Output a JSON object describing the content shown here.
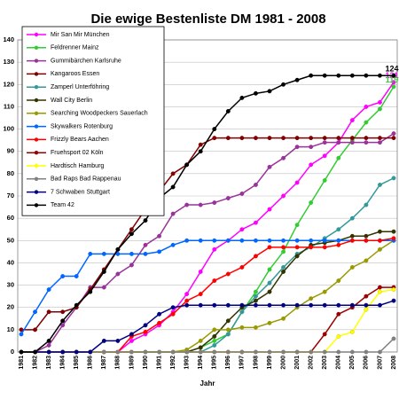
{
  "chart_data": {
    "type": "line",
    "title": "Die ewige Bestenliste DM 1981 - 2008",
    "x_label": "Jahr",
    "categories": [
      "1981",
      "1982",
      "1983",
      "1984",
      "1985",
      "1986",
      "1987",
      "1988",
      "1989",
      "1990",
      "1991",
      "1992",
      "1993",
      "1994",
      "1995",
      "1996",
      "1997",
      "1998",
      "1999",
      "2000",
      "2001",
      "2002",
      "2003",
      "2004",
      "2005",
      "2006",
      "2007",
      "2008"
    ],
    "ylim": [
      0,
      140
    ],
    "yticks": [
      0,
      10,
      20,
      30,
      40,
      50,
      60,
      70,
      80,
      90,
      100,
      110,
      120,
      130,
      140
    ],
    "grid": true,
    "legend": "top-left",
    "series": [
      {
        "name": "Mir San Mir München",
        "color": "#ff00ff",
        "show_last_label": true,
        "values": [
          0,
          0,
          0,
          0,
          0,
          0,
          0,
          0,
          5,
          8,
          12,
          18,
          26,
          36,
          46,
          50,
          55,
          58,
          64,
          70,
          76,
          84,
          88,
          94,
          104,
          110,
          112,
          121
        ]
      },
      {
        "name": "Feldrenner Mainz",
        "color": "#33cc33",
        "show_last_label": true,
        "values": [
          0,
          0,
          0,
          0,
          0,
          0,
          0,
          0,
          0,
          0,
          0,
          0,
          0,
          2,
          5,
          8,
          18,
          27,
          37,
          45,
          57,
          67,
          77,
          87,
          95,
          103,
          109,
          119
        ]
      },
      {
        "name": "Gummibärchen Karlsruhe",
        "color": "#993399",
        "values": [
          0,
          0,
          3,
          12,
          20,
          29,
          29,
          35,
          39,
          48,
          52,
          62,
          66,
          66,
          67,
          69,
          71,
          75,
          83,
          87,
          92,
          92,
          94,
          94,
          94,
          94,
          94,
          98
        ]
      },
      {
        "name": "Kangaroos Essen",
        "color": "#800000",
        "values": [
          10,
          10,
          18,
          18,
          20,
          28,
          37,
          46,
          55,
          64,
          72,
          80,
          84,
          93,
          96,
          96,
          96,
          96,
          96,
          96,
          96,
          96,
          96,
          96,
          96,
          96,
          96,
          96
        ]
      },
      {
        "name": "Zamperl Unterföhring",
        "color": "#339999",
        "values": [
          0,
          0,
          0,
          0,
          0,
          0,
          0,
          0,
          0,
          0,
          0,
          0,
          0,
          0,
          3,
          8,
          18,
          25,
          31,
          38,
          44,
          47,
          51,
          55,
          60,
          66,
          75,
          78
        ]
      },
      {
        "name": "Wall City Berlin",
        "color": "#333300",
        "values": [
          0,
          0,
          0,
          0,
          0,
          0,
          0,
          0,
          0,
          0,
          0,
          0,
          0,
          2,
          7,
          14,
          20,
          23,
          27,
          36,
          43,
          48,
          49,
          50,
          52,
          52,
          54,
          54
        ]
      },
      {
        "name": "Searching Woodpeckers Sauerlach",
        "color": "#999900",
        "values": [
          0,
          0,
          0,
          0,
          0,
          0,
          0,
          0,
          0,
          0,
          0,
          0,
          1,
          5,
          10,
          10,
          11,
          11,
          13,
          15,
          20,
          24,
          27,
          32,
          38,
          41,
          46,
          50
        ]
      },
      {
        "name": "Skywalkers Rotenburg",
        "color": "#0066ff",
        "values": [
          8,
          18,
          28,
          34,
          34,
          44,
          44,
          44,
          44,
          44,
          45,
          48,
          50,
          50,
          50,
          50,
          50,
          50,
          50,
          50,
          50,
          50,
          50,
          50,
          50,
          50,
          50,
          50
        ]
      },
      {
        "name": "Frizzly Bears Aachen",
        "color": "#ff0000",
        "values": [
          0,
          0,
          0,
          0,
          0,
          0,
          0,
          0,
          7,
          9,
          13,
          17,
          23,
          26,
          32,
          35,
          38,
          43,
          47,
          47,
          47,
          47,
          47,
          48,
          50,
          50,
          50,
          51
        ]
      },
      {
        "name": "Fruehsport 02 Köln",
        "color": "#990000",
        "values": [
          0,
          0,
          0,
          0,
          0,
          0,
          0,
          0,
          0,
          0,
          0,
          0,
          0,
          0,
          0,
          0,
          0,
          0,
          0,
          0,
          0,
          0,
          8,
          17,
          20,
          25,
          29,
          29
        ]
      },
      {
        "name": "Hardtisch Hamburg",
        "color": "#ffff00",
        "values": [
          0,
          0,
          0,
          0,
          0,
          0,
          0,
          0,
          0,
          0,
          0,
          0,
          0,
          0,
          0,
          0,
          0,
          0,
          0,
          0,
          0,
          0,
          0,
          7,
          9,
          19,
          27,
          28
        ]
      },
      {
        "name": "Bad Raps Bad Rappenau",
        "color": "#808080",
        "values": [
          0,
          0,
          0,
          0,
          0,
          0,
          0,
          0,
          0,
          0,
          0,
          0,
          0,
          0,
          0,
          0,
          0,
          0,
          0,
          0,
          0,
          0,
          0,
          0,
          0,
          0,
          0,
          6
        ]
      },
      {
        "name": "7 Schwaben Stuttgart",
        "color": "#000080",
        "values": [
          0,
          0,
          0,
          0,
          0,
          0,
          5,
          5,
          8,
          12,
          17,
          20,
          21,
          21,
          21,
          21,
          21,
          21,
          21,
          21,
          21,
          21,
          21,
          21,
          21,
          21,
          21,
          23
        ]
      },
      {
        "name": "Team 42",
        "color": "#000000",
        "show_last_label": true,
        "values": [
          0,
          0,
          5,
          14,
          21,
          27,
          36,
          46,
          53,
          59,
          69,
          74,
          84,
          90,
          100,
          108,
          114,
          116,
          117,
          120,
          122,
          124,
          124,
          124,
          124,
          124,
          124,
          124
        ]
      }
    ]
  }
}
